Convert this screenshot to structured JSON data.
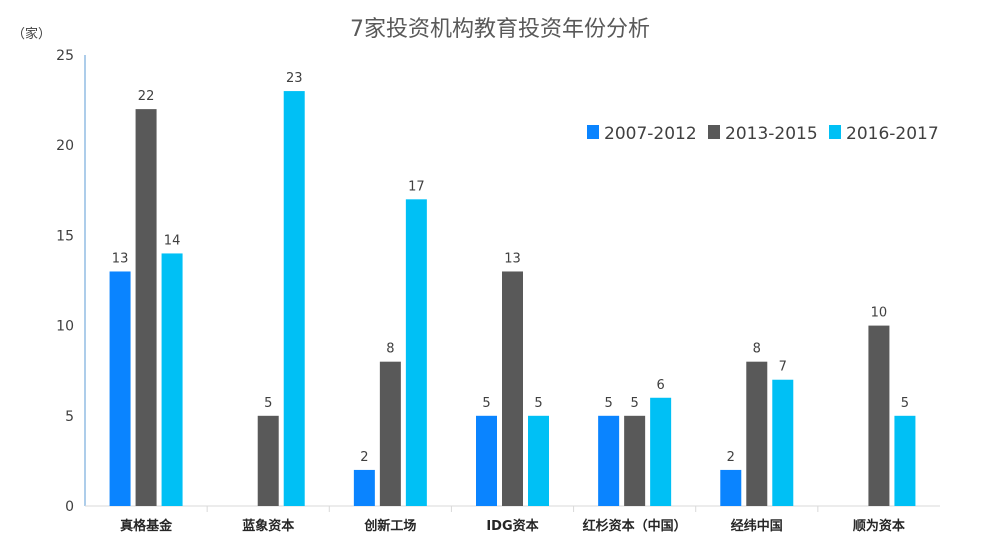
{
  "chart_data": {
    "type": "bar",
    "title": "7家投资机构教育投资年份分析",
    "unit_label": "（家）",
    "ylim": [
      0,
      25
    ],
    "yticks": [
      0,
      5,
      10,
      15,
      20,
      25
    ],
    "categories": [
      "真格基金",
      "蓝象资本",
      "创新工场",
      "IDG资本",
      "红杉资本（中国）",
      "经纬中国",
      "顺为资本"
    ],
    "series": [
      {
        "name": "2007-2012",
        "color": "#0a84ff",
        "values": [
          13,
          null,
          2,
          5,
          5,
          2,
          null
        ]
      },
      {
        "name": "2013-2015",
        "color": "#595959",
        "values": [
          22,
          5,
          8,
          13,
          5,
          8,
          10
        ]
      },
      {
        "name": "2016-2017",
        "color": "#00c0f5",
        "values": [
          14,
          23,
          17,
          5,
          6,
          7,
          5
        ]
      }
    ],
    "legend_position": "top-right",
    "grid": false
  }
}
